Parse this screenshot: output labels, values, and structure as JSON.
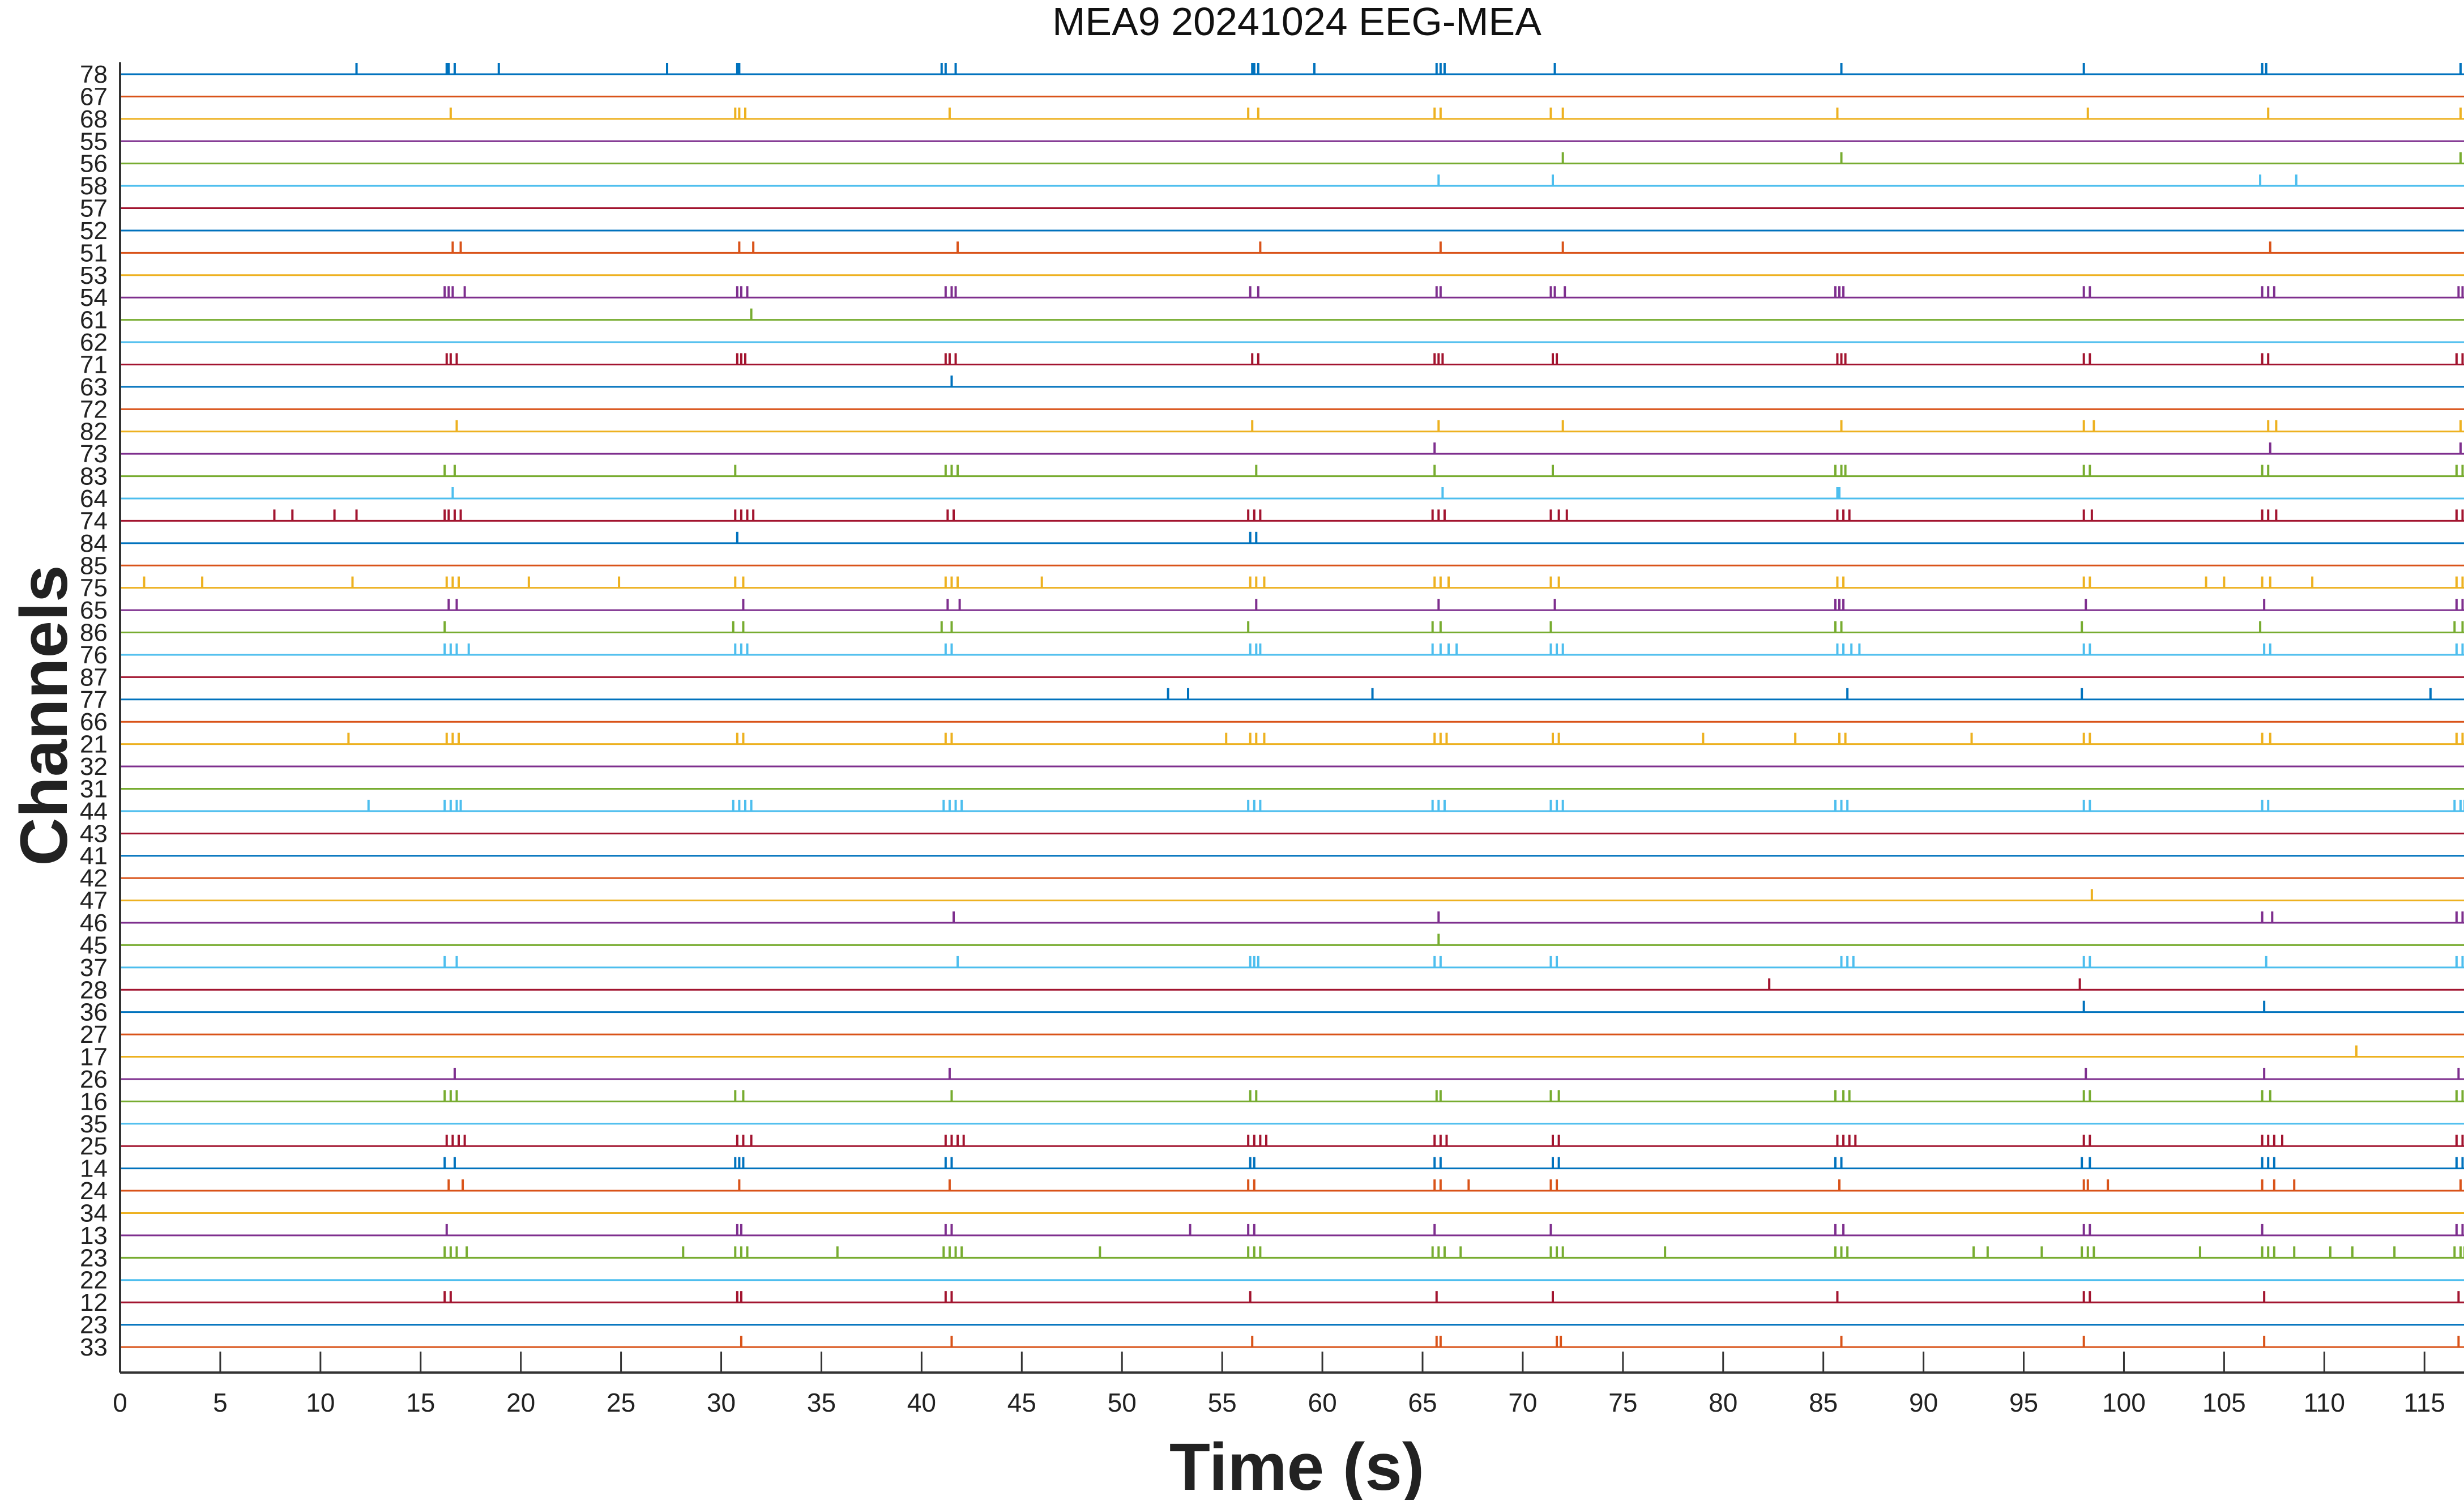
{
  "chart_data": {
    "type": "raster",
    "title": "MEA9 20241024 EEG-MEA",
    "xlabel": "Time (s)",
    "ylabel": "Channels",
    "xlim": [
      0,
      117
    ],
    "xticks": [
      0,
      5,
      10,
      15,
      20,
      25,
      30,
      35,
      40,
      45,
      50,
      55,
      60,
      65,
      70,
      75,
      80,
      85,
      90,
      95,
      100,
      105,
      110,
      115
    ],
    "grid": false,
    "legend": "none",
    "palette": [
      "#0072bd",
      "#d95319",
      "#edb120",
      "#7e2f8e",
      "#77ac30",
      "#4dbeee",
      "#a2142f"
    ],
    "channels": [
      {
        "label": "78",
        "spikes": [
          11.8,
          16.3,
          16.4,
          16.7,
          18.9,
          27.3,
          30.8,
          30.9,
          41.0,
          41.2,
          41.7,
          56.5,
          56.6,
          56.8,
          59.6,
          65.7,
          65.9,
          66.1,
          71.6,
          85.9,
          98.0,
          106.9,
          107.1,
          116.8
        ]
      },
      {
        "label": "67",
        "spikes": []
      },
      {
        "label": "68",
        "spikes": [
          16.5,
          30.7,
          30.9,
          31.2,
          41.4,
          56.3,
          56.8,
          65.6,
          65.9,
          71.4,
          72.0,
          85.7,
          98.2,
          107.2,
          116.8
        ]
      },
      {
        "label": "55",
        "spikes": []
      },
      {
        "label": "56",
        "spikes": [
          72.0,
          85.9,
          116.8
        ]
      },
      {
        "label": "58",
        "spikes": [
          65.8,
          71.5,
          106.8,
          108.6
        ]
      },
      {
        "label": "57",
        "spikes": []
      },
      {
        "label": "52",
        "spikes": []
      },
      {
        "label": "51",
        "spikes": [
          16.6,
          17.0,
          30.9,
          31.6,
          41.8,
          56.9,
          65.9,
          72.0,
          107.3
        ]
      },
      {
        "label": "53",
        "spikes": []
      },
      {
        "label": "54",
        "spikes": [
          16.2,
          16.4,
          16.6,
          17.2,
          30.8,
          31.0,
          31.3,
          41.2,
          41.5,
          41.7,
          56.4,
          56.8,
          65.7,
          65.9,
          71.4,
          71.6,
          72.1,
          85.6,
          85.8,
          86.0,
          98.0,
          98.3,
          106.9,
          107.2,
          107.5,
          116.7,
          116.9
        ]
      },
      {
        "label": "61",
        "spikes": [
          31.5
        ]
      },
      {
        "label": "62",
        "spikes": []
      },
      {
        "label": "71",
        "spikes": [
          16.3,
          16.5,
          16.8,
          30.8,
          31.0,
          31.2,
          41.2,
          41.4,
          41.7,
          56.5,
          56.8,
          65.6,
          65.8,
          66.0,
          71.5,
          71.7,
          85.7,
          85.9,
          86.1,
          98.0,
          98.3,
          106.9,
          107.2,
          116.6,
          116.9
        ]
      },
      {
        "label": "63",
        "spikes": [
          41.5
        ]
      },
      {
        "label": "72",
        "spikes": []
      },
      {
        "label": "82",
        "spikes": [
          16.8,
          56.5,
          65.8,
          72.0,
          85.9,
          98.0,
          98.5,
          107.2,
          107.6,
          116.8
        ]
      },
      {
        "label": "73",
        "spikes": [
          65.6,
          107.3,
          116.8
        ]
      },
      {
        "label": "83",
        "spikes": [
          16.2,
          16.7,
          30.7,
          41.2,
          41.5,
          41.8,
          56.7,
          65.6,
          71.5,
          85.6,
          85.9,
          86.1,
          98.0,
          98.3,
          106.9,
          107.2,
          116.6,
          116.9
        ]
      },
      {
        "label": "64",
        "spikes": [
          16.6,
          66.0,
          85.7,
          85.8
        ]
      },
      {
        "label": "74",
        "spikes": [
          7.7,
          8.6,
          10.7,
          11.8,
          16.2,
          16.4,
          16.7,
          17.0,
          30.7,
          31.0,
          31.3,
          31.6,
          41.3,
          41.6,
          56.3,
          56.6,
          56.9,
          65.5,
          65.8,
          66.1,
          71.4,
          71.8,
          72.2,
          85.7,
          86.0,
          86.3,
          98.0,
          98.4,
          106.9,
          107.2,
          107.6,
          116.6,
          116.9
        ]
      },
      {
        "label": "84",
        "spikes": [
          30.8,
          56.4,
          56.7
        ]
      },
      {
        "label": "85",
        "spikes": []
      },
      {
        "label": "75",
        "spikes": [
          1.2,
          4.1,
          11.6,
          16.3,
          16.6,
          16.9,
          20.4,
          24.9,
          30.7,
          31.1,
          41.2,
          41.5,
          41.8,
          46.0,
          56.4,
          56.7,
          57.1,
          65.6,
          65.9,
          66.3,
          71.4,
          71.8,
          85.7,
          86.0,
          98.0,
          98.3,
          104.1,
          105.0,
          106.9,
          107.3,
          109.4,
          116.6,
          116.9
        ]
      },
      {
        "label": "65",
        "spikes": [
          16.4,
          16.8,
          31.1,
          41.3,
          41.9,
          56.7,
          65.8,
          71.6,
          85.6,
          85.8,
          86.0,
          98.1,
          107.0,
          116.6,
          116.9
        ]
      },
      {
        "label": "86",
        "spikes": [
          16.2,
          30.6,
          31.1,
          41.0,
          41.5,
          56.3,
          65.5,
          65.9,
          71.4,
          85.6,
          85.9,
          97.9,
          106.8,
          116.5,
          116.9
        ]
      },
      {
        "label": "76",
        "spikes": [
          16.2,
          16.5,
          16.8,
          17.4,
          30.7,
          31.0,
          31.3,
          41.2,
          41.5,
          56.4,
          56.7,
          56.9,
          65.5,
          65.9,
          66.3,
          66.7,
          71.4,
          71.7,
          72.0,
          85.7,
          86.0,
          86.4,
          86.8,
          98.0,
          98.3,
          107.0,
          107.3,
          116.6,
          116.9
        ]
      },
      {
        "label": "87",
        "spikes": []
      },
      {
        "label": "77",
        "spikes": [
          52.3,
          53.3,
          62.5,
          86.2,
          97.9,
          115.3
        ]
      },
      {
        "label": "66",
        "spikes": []
      },
      {
        "label": "21",
        "spikes": [
          11.4,
          16.3,
          16.6,
          16.9,
          30.8,
          31.1,
          41.2,
          41.5,
          55.2,
          56.4,
          56.7,
          57.1,
          65.6,
          65.9,
          66.2,
          71.5,
          71.8,
          79.0,
          83.6,
          85.8,
          86.1,
          92.4,
          98.0,
          98.3,
          106.9,
          107.3,
          116.6,
          116.9
        ]
      },
      {
        "label": "32",
        "spikes": []
      },
      {
        "label": "31",
        "spikes": []
      },
      {
        "label": "44",
        "spikes": [
          12.4,
          16.2,
          16.5,
          16.8,
          17.0,
          30.6,
          30.9,
          31.2,
          31.5,
          41.1,
          41.4,
          41.7,
          42.0,
          56.3,
          56.6,
          56.9,
          65.5,
          65.8,
          66.1,
          71.4,
          71.7,
          72.0,
          85.6,
          85.9,
          86.2,
          98.0,
          98.3,
          106.9,
          107.2,
          116.5,
          116.8,
          117.0
        ]
      },
      {
        "label": "43",
        "spikes": []
      },
      {
        "label": "41",
        "spikes": []
      },
      {
        "label": "42",
        "spikes": []
      },
      {
        "label": "47",
        "spikes": [
          98.4
        ]
      },
      {
        "label": "46",
        "spikes": [
          41.6,
          65.8,
          106.9,
          107.4,
          116.6,
          116.9
        ]
      },
      {
        "label": "45",
        "spikes": [
          65.8
        ]
      },
      {
        "label": "37",
        "spikes": [
          16.2,
          16.8,
          41.8,
          56.4,
          56.6,
          56.8,
          65.6,
          65.9,
          71.4,
          71.7,
          85.9,
          86.2,
          86.5,
          98.0,
          98.3,
          107.1,
          116.6,
          116.9
        ]
      },
      {
        "label": "28",
        "spikes": [
          82.3,
          97.8
        ]
      },
      {
        "label": "36",
        "spikes": [
          98.0,
          107.0
        ]
      },
      {
        "label": "27",
        "spikes": []
      },
      {
        "label": "17",
        "spikes": [
          111.6
        ]
      },
      {
        "label": "26",
        "spikes": [
          16.7,
          41.4,
          98.1,
          107.0,
          116.7
        ]
      },
      {
        "label": "16",
        "spikes": [
          16.2,
          16.5,
          16.8,
          30.7,
          31.1,
          41.5,
          56.4,
          56.7,
          65.7,
          65.9,
          71.4,
          71.8,
          85.6,
          86.0,
          86.3,
          98.0,
          98.3,
          106.9,
          107.3,
          116.6,
          116.9
        ]
      },
      {
        "label": "35",
        "spikes": []
      },
      {
        "label": "25",
        "spikes": [
          16.3,
          16.6,
          16.9,
          17.2,
          30.8,
          31.1,
          31.5,
          41.2,
          41.5,
          41.8,
          42.1,
          56.3,
          56.6,
          56.9,
          57.2,
          65.6,
          65.9,
          66.2,
          71.5,
          71.8,
          85.7,
          86.0,
          86.3,
          86.6,
          98.0,
          98.3,
          106.9,
          107.2,
          107.5,
          107.9,
          116.6,
          116.9
        ]
      },
      {
        "label": "14",
        "spikes": [
          16.2,
          16.7,
          30.7,
          30.9,
          31.1,
          41.2,
          41.5,
          56.4,
          56.6,
          65.6,
          65.9,
          71.5,
          71.8,
          85.6,
          85.9,
          97.9,
          98.3,
          106.9,
          107.2,
          107.5,
          116.6,
          116.9
        ]
      },
      {
        "label": "24",
        "spikes": [
          16.4,
          17.1,
          30.9,
          41.4,
          56.3,
          56.6,
          65.6,
          65.9,
          67.3,
          71.4,
          71.7,
          85.8,
          98.0,
          98.2,
          99.2,
          106.9,
          107.5,
          108.5,
          116.8
        ]
      },
      {
        "label": "34",
        "spikes": []
      },
      {
        "label": "13",
        "spikes": [
          16.3,
          30.8,
          31.0,
          41.2,
          41.5,
          53.4,
          56.3,
          56.6,
          65.6,
          71.4,
          85.6,
          86.0,
          98.0,
          98.3,
          106.9,
          116.6,
          116.9
        ]
      },
      {
        "label": "23",
        "spikes": [
          16.2,
          16.5,
          16.8,
          17.3,
          28.1,
          30.7,
          31.0,
          31.3,
          35.8,
          41.1,
          41.4,
          41.7,
          42.0,
          48.9,
          56.3,
          56.6,
          56.9,
          65.5,
          65.8,
          66.1,
          66.9,
          71.4,
          71.7,
          72.0,
          77.1,
          85.6,
          85.9,
          86.2,
          92.5,
          93.2,
          95.9,
          97.9,
          98.2,
          98.5,
          103.8,
          106.9,
          107.2,
          107.5,
          108.5,
          110.3,
          111.4,
          113.5,
          116.5,
          116.8,
          117.0
        ]
      },
      {
        "label": "22",
        "spikes": []
      },
      {
        "label": "12",
        "spikes": [
          16.2,
          16.5,
          30.8,
          31.0,
          41.2,
          41.5,
          56.4,
          65.7,
          71.5,
          85.7,
          98.0,
          98.3,
          107.0,
          116.7
        ]
      },
      {
        "label": "23",
        "spikes": []
      },
      {
        "label": "33",
        "spikes": [
          31.0,
          41.5,
          56.5,
          65.7,
          65.9,
          71.7,
          71.9,
          85.9,
          98.0,
          107.0,
          116.7
        ]
      }
    ]
  }
}
